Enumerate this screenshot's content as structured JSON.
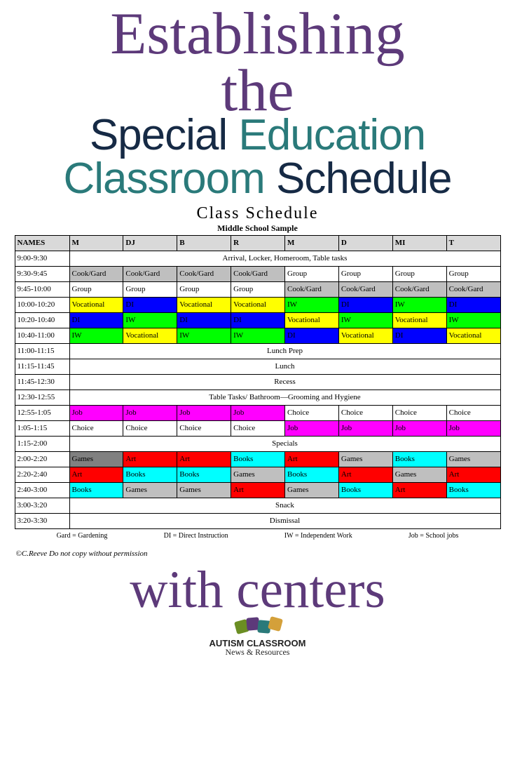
{
  "heading": {
    "script_top_line1": "Establishing",
    "script_top_line2": "the",
    "main_w1": "Special",
    "main_w2": "Education",
    "main_w3": "Classroom",
    "main_w4": "Schedule",
    "script_bottom": "with centers"
  },
  "schedule": {
    "title": "Class Schedule",
    "subtitle": "Middle School Sample",
    "colors": {
      "header_gray": "#d9d9d9",
      "gray": "#bfbfbf",
      "darkgray": "#808080",
      "yellow": "#ffff00",
      "blue": "#0000ff",
      "green": "#00ff00",
      "magenta": "#ff00ff",
      "red": "#ff0000",
      "cyan": "#00ffff",
      "white": "#ffffff"
    },
    "columns": [
      "NAMES",
      "M",
      "DJ",
      "B",
      "R",
      "M",
      "D",
      "MI",
      "T"
    ],
    "rows": [
      {
        "time": "9:00-9:30",
        "span": "Arrival, Locker, Homeroom, Table tasks"
      },
      {
        "time": "9:30-9:45",
        "cells": [
          {
            "t": "Cook/Gard",
            "c": "gray"
          },
          {
            "t": "Cook/Gard",
            "c": "gray"
          },
          {
            "t": "Cook/Gard",
            "c": "gray"
          },
          {
            "t": "Cook/Gard",
            "c": "gray"
          },
          {
            "t": "Group",
            "c": "white"
          },
          {
            "t": "Group",
            "c": "white"
          },
          {
            "t": "Group",
            "c": "white"
          },
          {
            "t": "Group",
            "c": "white"
          }
        ]
      },
      {
        "time": "9:45-10:00",
        "cells": [
          {
            "t": "Group",
            "c": "white"
          },
          {
            "t": "Group",
            "c": "white"
          },
          {
            "t": "Group",
            "c": "white"
          },
          {
            "t": "Group",
            "c": "white"
          },
          {
            "t": "Cook/Gard",
            "c": "gray"
          },
          {
            "t": "Cook/Gard",
            "c": "gray"
          },
          {
            "t": "Cook/Gard",
            "c": "gray"
          },
          {
            "t": "Cook/Gard",
            "c": "gray"
          }
        ]
      },
      {
        "time": "10:00-10:20",
        "cells": [
          {
            "t": "Vocational",
            "c": "yellow"
          },
          {
            "t": "DI",
            "c": "blue"
          },
          {
            "t": "Vocational",
            "c": "yellow"
          },
          {
            "t": "Vocational",
            "c": "yellow"
          },
          {
            "t": "IW",
            "c": "green"
          },
          {
            "t": "DI",
            "c": "blue"
          },
          {
            "t": "IW",
            "c": "green"
          },
          {
            "t": "DI",
            "c": "blue"
          }
        ]
      },
      {
        "time": "10:20-10:40",
        "cells": [
          {
            "t": "DI",
            "c": "blue"
          },
          {
            "t": "IW",
            "c": "green"
          },
          {
            "t": "DI",
            "c": "blue"
          },
          {
            "t": "DI",
            "c": "blue"
          },
          {
            "t": "Vocational",
            "c": "yellow"
          },
          {
            "t": "IW",
            "c": "green"
          },
          {
            "t": "Vocational",
            "c": "yellow"
          },
          {
            "t": "IW",
            "c": "green"
          }
        ]
      },
      {
        "time": "10:40-11:00",
        "cells": [
          {
            "t": "IW",
            "c": "green"
          },
          {
            "t": "Vocational",
            "c": "yellow"
          },
          {
            "t": "IW",
            "c": "green"
          },
          {
            "t": "IW",
            "c": "green"
          },
          {
            "t": "DI",
            "c": "blue"
          },
          {
            "t": "Vocational",
            "c": "yellow"
          },
          {
            "t": "DI",
            "c": "blue"
          },
          {
            "t": "Vocational",
            "c": "yellow"
          }
        ]
      },
      {
        "time": "11:00-11:15",
        "span": "Lunch Prep"
      },
      {
        "time": "11:15-11:45",
        "span": "Lunch"
      },
      {
        "time": "11:45-12:30",
        "span": "Recess"
      },
      {
        "time": "12:30-12:55",
        "span": "Table Tasks/ Bathroom—Grooming and Hygiene"
      },
      {
        "time": "12:55-1:05",
        "cells": [
          {
            "t": "Job",
            "c": "magenta"
          },
          {
            "t": "Job",
            "c": "magenta"
          },
          {
            "t": "Job",
            "c": "magenta"
          },
          {
            "t": "Job",
            "c": "magenta"
          },
          {
            "t": "Choice",
            "c": "white"
          },
          {
            "t": "Choice",
            "c": "white"
          },
          {
            "t": "Choice",
            "c": "white"
          },
          {
            "t": "Choice",
            "c": "white"
          }
        ]
      },
      {
        "time": "1:05-1:15",
        "cells": [
          {
            "t": "Choice",
            "c": "white"
          },
          {
            "t": "Choice",
            "c": "white"
          },
          {
            "t": "Choice",
            "c": "white"
          },
          {
            "t": "Choice",
            "c": "white"
          },
          {
            "t": "Job",
            "c": "magenta"
          },
          {
            "t": "Job",
            "c": "magenta"
          },
          {
            "t": "Job",
            "c": "magenta"
          },
          {
            "t": "Job",
            "c": "magenta"
          }
        ]
      },
      {
        "time": "1:15-2:00",
        "span": "Specials"
      },
      {
        "time": "2:00-2:20",
        "cells": [
          {
            "t": "Games",
            "c": "darkgray"
          },
          {
            "t": "Art",
            "c": "red"
          },
          {
            "t": "Art",
            "c": "red"
          },
          {
            "t": "Books",
            "c": "cyan"
          },
          {
            "t": "Art",
            "c": "red"
          },
          {
            "t": "Games",
            "c": "gray"
          },
          {
            "t": "Books",
            "c": "cyan"
          },
          {
            "t": "Games",
            "c": "gray"
          }
        ]
      },
      {
        "time": "2:20-2:40",
        "cells": [
          {
            "t": "Art",
            "c": "red"
          },
          {
            "t": "Books",
            "c": "cyan"
          },
          {
            "t": "Books",
            "c": "cyan"
          },
          {
            "t": "Games",
            "c": "gray"
          },
          {
            "t": "Books",
            "c": "cyan"
          },
          {
            "t": "Art",
            "c": "red"
          },
          {
            "t": "Games",
            "c": "gray"
          },
          {
            "t": "Art",
            "c": "red"
          }
        ]
      },
      {
        "time": "2:40-3:00",
        "cells": [
          {
            "t": "Books",
            "c": "cyan"
          },
          {
            "t": "Games",
            "c": "gray"
          },
          {
            "t": "Games",
            "c": "gray"
          },
          {
            "t": "Art",
            "c": "red"
          },
          {
            "t": "Games",
            "c": "gray"
          },
          {
            "t": "Books",
            "c": "cyan"
          },
          {
            "t": "Art",
            "c": "red"
          },
          {
            "t": "Books",
            "c": "cyan"
          }
        ]
      },
      {
        "time": "3:00-3:20",
        "span": "Snack"
      },
      {
        "time": "3:20-3:30",
        "span": "Dismissal"
      }
    ],
    "legend": [
      "Gard = Gardening",
      "DI = Direct Instruction",
      "IW = Independent Work",
      "Job = School jobs"
    ],
    "copyright": "©C.Reeve Do not copy without permission"
  },
  "logo": {
    "line1": "AUTISM CLASSROOM",
    "line2": "News & Resources",
    "piece_colors": [
      "#6b8e23",
      "#5d3a7a",
      "#2a7a7a",
      "#d4a03a"
    ]
  }
}
